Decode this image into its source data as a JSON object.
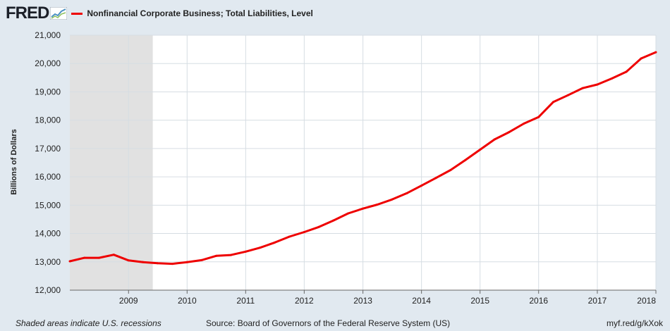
{
  "header": {
    "logo": "FRED",
    "series_label": "Nonfinancial Corporate Business; Total Liabilities, Level"
  },
  "colors": {
    "line": "#ee0000",
    "recession": "#e1e1e1",
    "plot_bg": "#ffffff",
    "page_bg": "#e1e9f0",
    "grid": "#d6dde3"
  },
  "chart_data": {
    "type": "line",
    "title": "Nonfinancial Corporate Business; Total Liabilities, Level",
    "xlabel": "",
    "ylabel": "Billions of Dollars",
    "ylim": [
      12000,
      21000
    ],
    "x_ticks": [
      "2009",
      "2010",
      "2011",
      "2012",
      "2013",
      "2014",
      "2015",
      "2016",
      "2017",
      "2018"
    ],
    "y_ticks": [
      "12,000",
      "13,000",
      "14,000",
      "15,000",
      "16,000",
      "17,000",
      "18,000",
      "19,000",
      "20,000",
      "21,000"
    ],
    "grid": true,
    "recession_shading": [
      {
        "start": "2007-12-01",
        "end": "2009-06-01"
      }
    ],
    "series": [
      {
        "name": "Nonfinancial Corporate Business; Total Liabilities, Level",
        "x": [
          "2008-01-01",
          "2008-04-01",
          "2008-07-01",
          "2008-10-01",
          "2009-01-01",
          "2009-04-01",
          "2009-07-01",
          "2009-10-01",
          "2010-01-01",
          "2010-04-01",
          "2010-07-01",
          "2010-10-01",
          "2011-01-01",
          "2011-04-01",
          "2011-07-01",
          "2011-10-01",
          "2012-01-01",
          "2012-04-01",
          "2012-07-01",
          "2012-10-01",
          "2013-01-01",
          "2013-04-01",
          "2013-07-01",
          "2013-10-01",
          "2014-01-01",
          "2014-04-01",
          "2014-07-01",
          "2014-10-01",
          "2015-01-01",
          "2015-04-01",
          "2015-07-01",
          "2015-10-01",
          "2016-01-01",
          "2016-04-01",
          "2016-07-01",
          "2016-10-01",
          "2017-01-01",
          "2017-04-01",
          "2017-07-01",
          "2017-10-01",
          "2018-01-01"
        ],
        "values": [
          13020,
          13140,
          13140,
          13250,
          13050,
          12990,
          12950,
          12930,
          12990,
          13060,
          13210,
          13240,
          13360,
          13500,
          13680,
          13890,
          14050,
          14230,
          14460,
          14710,
          14880,
          15020,
          15200,
          15420,
          15690,
          15960,
          16240,
          16590,
          16960,
          17320,
          17580,
          17880,
          18110,
          18640,
          18880,
          19130,
          19260,
          19470,
          19710,
          20180,
          20400
        ]
      }
    ]
  },
  "footer": {
    "note": "Shaded areas indicate U.S. recessions",
    "source": "Source: Board of Governors of the Federal Reserve System (US)",
    "link": "myf.red/g/kXok"
  }
}
